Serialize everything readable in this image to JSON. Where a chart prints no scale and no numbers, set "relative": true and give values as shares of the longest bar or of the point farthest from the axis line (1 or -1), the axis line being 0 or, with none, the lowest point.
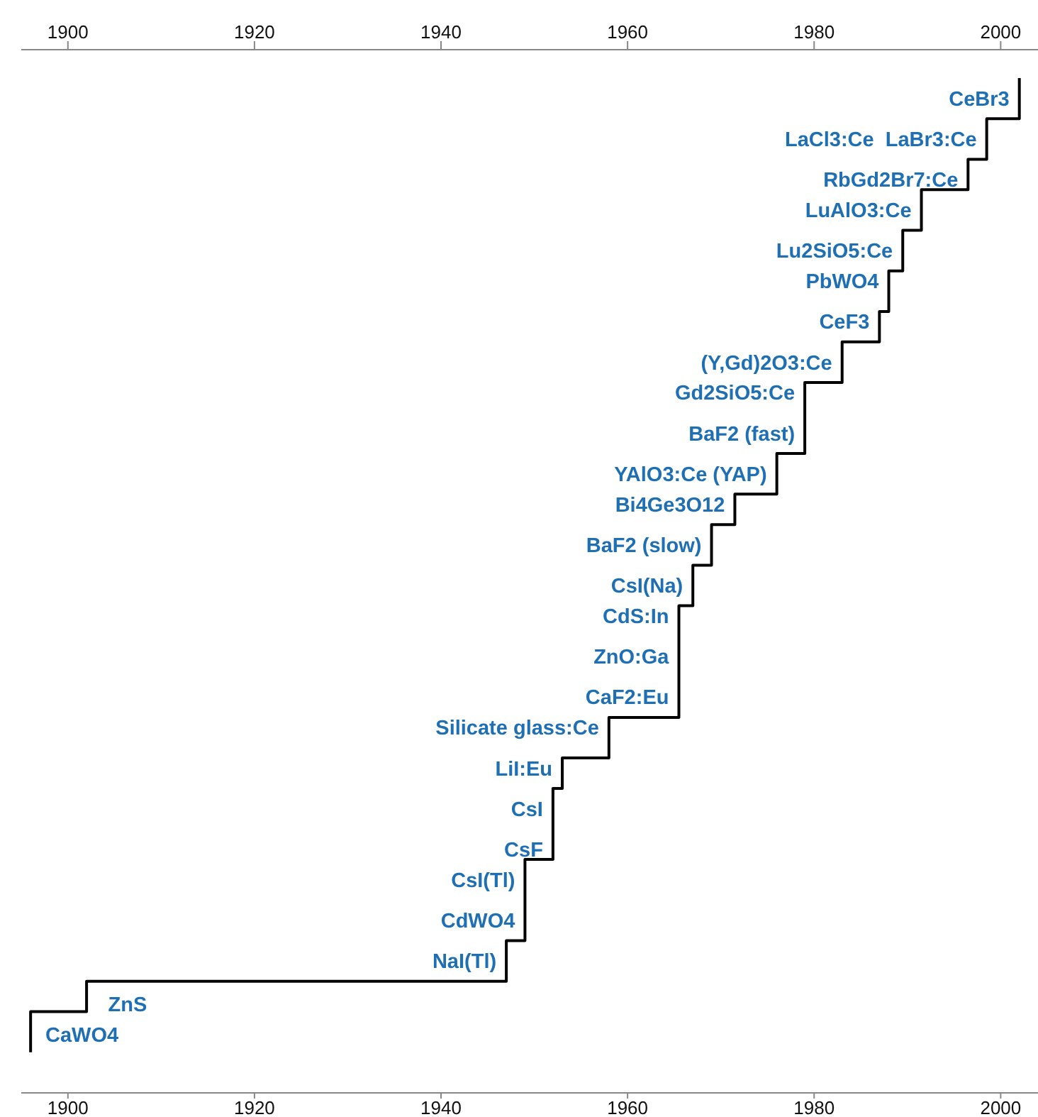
{
  "chart_data": {
    "type": "step",
    "relative": true,
    "x": [
      1896,
      1896,
      1902,
      1947,
      1949,
      1952,
      1953,
      1958,
      1965.5,
      1967,
      1969,
      1971.5,
      1976,
      1979,
      1983,
      1987,
      1988,
      1989.5,
      1991.5,
      1996.5,
      1998.5,
      2002
    ],
    "values": [
      0.04,
      0.08,
      0.11,
      0.15,
      0.23,
      0.3,
      0.33,
      0.37,
      0.48,
      0.52,
      0.56,
      0.59,
      0.63,
      0.7,
      0.74,
      0.77,
      0.81,
      0.85,
      0.89,
      0.92,
      0.96,
      1
    ],
    "color": "#000000",
    "line_style": "solid",
    "marker": "none",
    "grid": false,
    "legend": false,
    "xlim": [
      1895,
      2004
    ],
    "xticks": [
      1900,
      1920,
      1940,
      1960,
      1980,
      2000
    ],
    "x2lim": [
      1895,
      2004
    ],
    "x2ticks": [
      1900,
      1920,
      1940,
      1960,
      1980,
      2000
    ],
    "annotations": [
      {
        "text": "CaWO4",
        "x": 1901.5,
        "y": 0.08
      },
      {
        "text": "ZnS",
        "x": 1906.4,
        "y": 0.11
      },
      {
        "text": "NaI(Tl)",
        "x": 1947,
        "y": 0.13
      },
      {
        "text": "CdWO4",
        "x": 1949,
        "y": 0.17
      },
      {
        "text": "CsI(Tl)",
        "x": 1949,
        "y": 0.21
      },
      {
        "text": "CsF",
        "x": 1952,
        "y": 0.24
      },
      {
        "text": "CsI",
        "x": 1952,
        "y": 0.28
      },
      {
        "text": "LiI:Eu",
        "x": 1953,
        "y": 0.32
      },
      {
        "text": "Silicate glass:Ce",
        "x": 1958,
        "y": 0.36
      },
      {
        "text": "CaF2:Eu",
        "x": 1965.5,
        "y": 0.39
      },
      {
        "text": "ZnO:Ga",
        "x": 1965.5,
        "y": 0.43
      },
      {
        "text": "CdS:In",
        "x": 1965.5,
        "y": 0.47
      },
      {
        "text": "CsI(Na)",
        "x": 1967,
        "y": 0.5
      },
      {
        "text": "BaF2 (slow)",
        "x": 1969,
        "y": 0.54
      },
      {
        "text": "Bi4Ge3O12",
        "x": 1971.5,
        "y": 0.58
      },
      {
        "text": "YAlO3:Ce (YAP)",
        "x": 1976,
        "y": 0.61
      },
      {
        "text": "BaF2 (fast)",
        "x": 1979,
        "y": 0.65
      },
      {
        "text": "Gd2SiO5:Ce",
        "x": 1979,
        "y": 0.69
      },
      {
        "text": "(Y,Gd)2O3:Ce",
        "x": 1983,
        "y": 0.72
      },
      {
        "text": "CeF3",
        "x": 1987,
        "y": 0.76
      },
      {
        "text": "PbWO4",
        "x": 1988,
        "y": 0.8
      },
      {
        "text": "Lu2SiO5:Ce",
        "x": 1989.5,
        "y": 0.83
      },
      {
        "text": "LuAlO3:Ce",
        "x": 1991.5,
        "y": 0.87
      },
      {
        "text": "RbGd2Br7:Ce",
        "x": 1996.5,
        "y": 0.9
      },
      "LaCl3:Ce",
      {
        "text": "LaBr3:Ce",
        "x": 1998.5,
        "y": 0.94
      },
      {
        "text": "CeBr3",
        "x": 2002,
        "y": 0.98
      }
    ]
  }
}
